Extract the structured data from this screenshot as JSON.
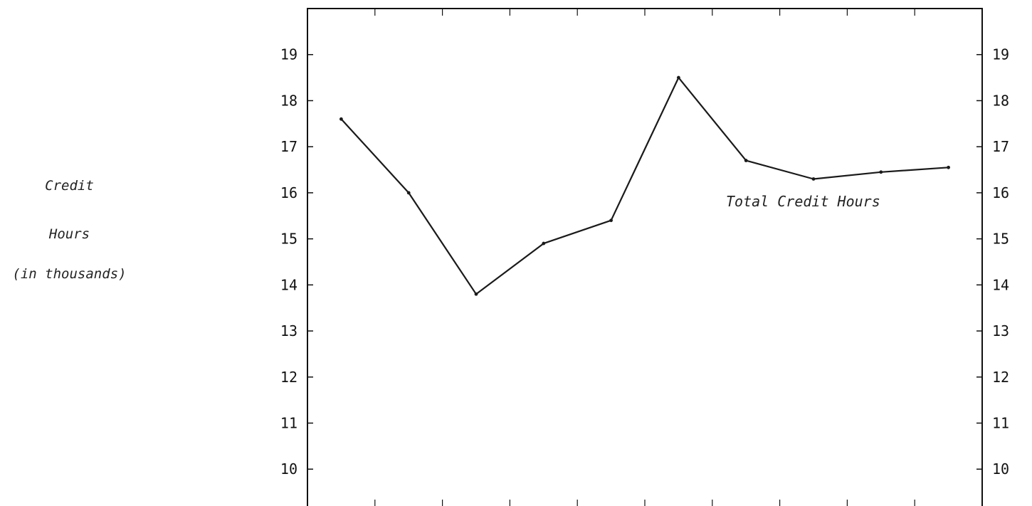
{
  "chart_data": {
    "type": "line",
    "title": "",
    "xlabel": "",
    "ylabel_lines": [
      "Credit",
      "Hours",
      "(in thousands)"
    ],
    "ylim": [
      9.2,
      20
    ],
    "yticks": [
      10,
      11,
      12,
      13,
      14,
      15,
      16,
      17,
      18,
      19
    ],
    "grid": false,
    "x_positions": 10,
    "series": [
      {
        "name": "Total Credit Hours",
        "x": [
          1,
          2,
          3,
          4,
          5,
          6,
          7,
          8,
          9,
          10
        ],
        "values": [
          17.6,
          16.0,
          13.8,
          14.9,
          15.4,
          18.5,
          16.7,
          16.3,
          16.45,
          16.55
        ]
      }
    ],
    "series_label": "Total Credit Hours",
    "colors": {
      "line": "#1a1a1a",
      "axis": "#111111"
    }
  }
}
